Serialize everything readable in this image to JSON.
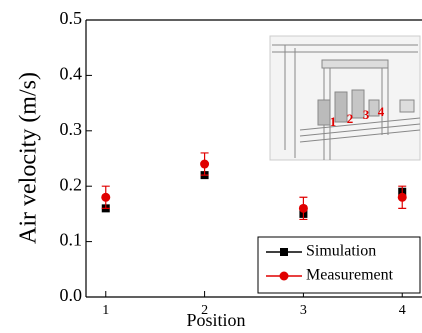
{
  "chart_data": {
    "type": "scatter",
    "x_label": "Position",
    "y_label": "Air velocity (m/s)",
    "x": [
      1,
      2,
      3,
      4
    ],
    "series": [
      {
        "name": "Simulation",
        "color": "#000000",
        "marker": "square",
        "values": [
          0.16,
          0.22,
          0.15,
          0.19
        ]
      },
      {
        "name": "Measurement",
        "color": "#e00000",
        "marker": "circle",
        "values": [
          0.18,
          0.24,
          0.16,
          0.18
        ],
        "errors": [
          0.02,
          0.02,
          0.02,
          0.02
        ]
      }
    ],
    "xlim": [
      0.8,
      4.2
    ],
    "xticks": [
      1,
      2,
      3,
      4
    ],
    "ylim": [
      0,
      0.5
    ],
    "yticks": [
      {
        "value": 0,
        "label": "0.0"
      },
      {
        "value": 0.1,
        "label": "0.1"
      },
      {
        "value": 0.2,
        "label": "0.2"
      },
      {
        "value": 0.3,
        "label": "0.3"
      },
      {
        "value": 0.4,
        "label": "0.4"
      },
      {
        "value": 0.5,
        "label": "0.5"
      }
    ],
    "legend": "lower right",
    "annotations": [
      "1",
      "2",
      "3",
      "4"
    ]
  }
}
